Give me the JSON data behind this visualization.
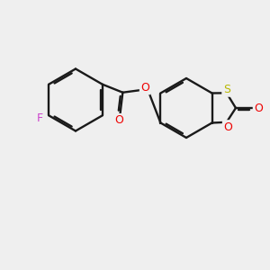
{
  "bg": "#efefef",
  "bond_color": "#1a1a1a",
  "F_color": "#cc44cc",
  "O_color": "#ee0000",
  "S_color": "#b8b800",
  "lw": 1.7,
  "dbo": 0.07,
  "fs": 9.0,
  "figsize": [
    3.0,
    3.0
  ],
  "dpi": 100,
  "xlim": [
    -1.0,
    9.0
  ],
  "ylim": [
    -1.5,
    8.5
  ]
}
